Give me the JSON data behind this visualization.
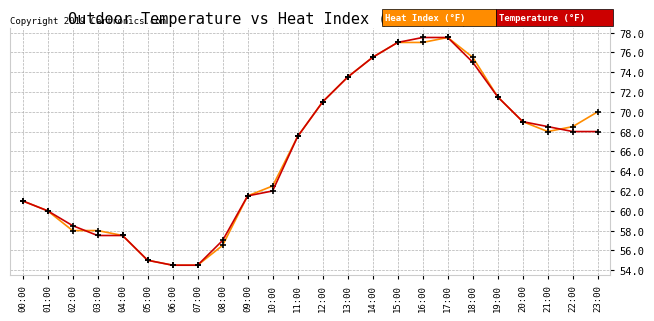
{
  "title": "Outdoor Temperature vs Heat Index (24 Hours) 20190914",
  "copyright": "Copyright 2019 Cartronics.com",
  "ylim": [
    53.5,
    78.5
  ],
  "yticks": [
    54.0,
    56.0,
    58.0,
    60.0,
    62.0,
    64.0,
    66.0,
    68.0,
    70.0,
    72.0,
    74.0,
    76.0,
    78.0
  ],
  "hours": [
    "00:00",
    "01:00",
    "02:00",
    "03:00",
    "04:00",
    "05:00",
    "06:00",
    "07:00",
    "08:00",
    "09:00",
    "10:00",
    "11:00",
    "12:00",
    "13:00",
    "14:00",
    "15:00",
    "16:00",
    "17:00",
    "18:00",
    "19:00",
    "20:00",
    "21:00",
    "22:00",
    "23:00"
  ],
  "temperature": [
    61.0,
    60.0,
    58.5,
    57.5,
    57.5,
    55.0,
    54.5,
    54.5,
    57.0,
    61.5,
    62.0,
    67.5,
    71.0,
    73.5,
    75.5,
    77.0,
    77.5,
    77.5,
    75.0,
    71.5,
    69.0,
    68.5,
    68.0,
    68.0
  ],
  "heat_index": [
    61.0,
    60.0,
    58.0,
    58.0,
    57.5,
    55.0,
    54.5,
    54.5,
    56.5,
    61.5,
    62.5,
    67.5,
    71.0,
    73.5,
    75.5,
    77.0,
    77.0,
    77.5,
    75.5,
    71.5,
    69.0,
    68.0,
    68.5,
    70.0
  ],
  "temp_color": "#cc0000",
  "heat_color": "#ff8c00",
  "marker": "+",
  "marker_color": "#000000",
  "bg_color": "#ffffff",
  "grid_color": "#b0b0b0",
  "title_fontsize": 11,
  "legend_heat_bg": "#ff8c00",
  "legend_temp_bg": "#cc0000",
  "legend_text_color": "#ffffff"
}
